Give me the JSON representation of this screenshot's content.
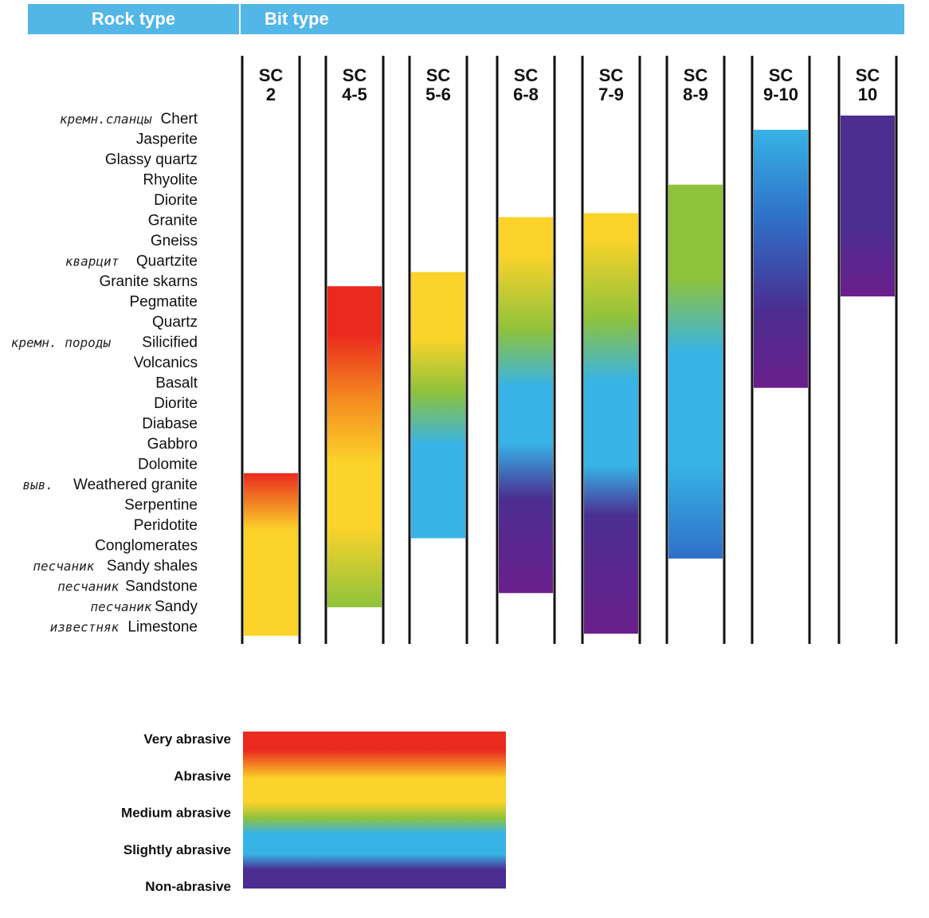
{
  "header": {
    "rock_type": "Rock type",
    "bit_type": "Bit type"
  },
  "rocks": [
    {
      "label": "Chert",
      "note": "кремн.сланцы"
    },
    {
      "label": "Jasperite",
      "note": ""
    },
    {
      "label": "Glassy quartz",
      "note": ""
    },
    {
      "label": "Rhyolite",
      "note": ""
    },
    {
      "label": "Diorite",
      "note": ""
    },
    {
      "label": "Granite",
      "note": ""
    },
    {
      "label": "Gneiss",
      "note": ""
    },
    {
      "label": "Quartzite",
      "note": "кварцит"
    },
    {
      "label": "Granite skarns",
      "note": ""
    },
    {
      "label": "Pegmatite",
      "note": ""
    },
    {
      "label": "Quartz",
      "note": ""
    },
    {
      "label": "Silicified",
      "note": "кремн. породы"
    },
    {
      "label": "Volcanics",
      "note": ""
    },
    {
      "label": "Basalt",
      "note": ""
    },
    {
      "label": "Diorite",
      "note": ""
    },
    {
      "label": "Diabase",
      "note": ""
    },
    {
      "label": "Gabbro",
      "note": ""
    },
    {
      "label": "Dolomite",
      "note": ""
    },
    {
      "label": "Weathered granite",
      "note": "выв."
    },
    {
      "label": "Serpentine",
      "note": ""
    },
    {
      "label": "Peridotite",
      "note": ""
    },
    {
      "label": "Conglomerates",
      "note": ""
    },
    {
      "label": "Sandy shales",
      "note": "песчаник"
    },
    {
      "label": "Sandstone",
      "note": "песчаник"
    },
    {
      "label": "Sandy",
      "note": "песчаник"
    },
    {
      "label": "Limestone",
      "note": "известняк"
    }
  ],
  "columns": [
    {
      "line1": "SC",
      "line2": "2",
      "start": 17.6,
      "end": 25.6,
      "stops": [
        {
          "o": 0,
          "c": "very"
        },
        {
          "o": 0.35,
          "c": "abrasive"
        },
        {
          "o": 1,
          "c": "abrasive"
        }
      ]
    },
    {
      "line1": "SC",
      "line2": "4-5",
      "start": 8.4,
      "end": 24.2,
      "stops": [
        {
          "o": 0,
          "c": "very"
        },
        {
          "o": 0.15,
          "c": "very"
        },
        {
          "o": 0.35,
          "c": "orange"
        },
        {
          "o": 0.55,
          "c": "abrasive"
        },
        {
          "o": 0.75,
          "c": "abrasive"
        },
        {
          "o": 1,
          "c": "medium"
        }
      ]
    },
    {
      "line1": "SC",
      "line2": "5-6",
      "start": 7.7,
      "end": 20.8,
      "stops": [
        {
          "o": 0,
          "c": "abrasive"
        },
        {
          "o": 0.25,
          "c": "abrasive"
        },
        {
          "o": 0.45,
          "c": "medium"
        },
        {
          "o": 0.65,
          "c": "slight"
        },
        {
          "o": 1,
          "c": "slight"
        }
      ]
    },
    {
      "line1": "SC",
      "line2": "6-8",
      "start": 5.0,
      "end": 23.5,
      "stops": [
        {
          "o": 0,
          "c": "abrasive"
        },
        {
          "o": 0.1,
          "c": "abrasive"
        },
        {
          "o": 0.3,
          "c": "medium"
        },
        {
          "o": 0.45,
          "c": "slight"
        },
        {
          "o": 0.6,
          "c": "slight"
        },
        {
          "o": 0.75,
          "c": "non"
        },
        {
          "o": 1,
          "c": "purple"
        }
      ]
    },
    {
      "line1": "SC",
      "line2": "7-9",
      "start": 4.8,
      "end": 25.5,
      "stops": [
        {
          "o": 0,
          "c": "abrasive"
        },
        {
          "o": 0.06,
          "c": "abrasive"
        },
        {
          "o": 0.25,
          "c": "medium"
        },
        {
          "o": 0.4,
          "c": "slight"
        },
        {
          "o": 0.6,
          "c": "slight"
        },
        {
          "o": 0.72,
          "c": "non"
        },
        {
          "o": 1,
          "c": "purple"
        }
      ]
    },
    {
      "line1": "SC",
      "line2": "8-9",
      "start": 3.4,
      "end": 21.8,
      "stops": [
        {
          "o": 0,
          "c": "medium"
        },
        {
          "o": 0.25,
          "c": "medium"
        },
        {
          "o": 0.45,
          "c": "slight"
        },
        {
          "o": 0.75,
          "c": "slight"
        },
        {
          "o": 1,
          "c": "blue"
        }
      ]
    },
    {
      "line1": "SC",
      "line2": "9-10",
      "start": 0.7,
      "end": 13.4,
      "stops": [
        {
          "o": 0,
          "c": "slight"
        },
        {
          "o": 0.35,
          "c": "blue"
        },
        {
          "o": 0.7,
          "c": "non"
        },
        {
          "o": 1,
          "c": "purple"
        }
      ]
    },
    {
      "line1": "SC",
      "line2": "10",
      "start": 0.0,
      "end": 8.9,
      "stops": [
        {
          "o": 0,
          "c": "non"
        },
        {
          "o": 0.6,
          "c": "non"
        },
        {
          "o": 1,
          "c": "purple"
        }
      ]
    }
  ],
  "colors": {
    "very": "#ea2a1e",
    "orange": "#f58a1f",
    "abrasive": "#fbd32a",
    "medium": "#8fc23b",
    "slight": "#37b3e6",
    "blue": "#2f6fc7",
    "non": "#4b2e90",
    "purple": "#6a1f8c"
  },
  "legend": [
    {
      "label": "Very abrasive"
    },
    {
      "label": "Abrasive"
    },
    {
      "label": "Medium abrasive"
    },
    {
      "label": "Slightly abrasive"
    },
    {
      "label": "Non-abrasive"
    }
  ]
}
